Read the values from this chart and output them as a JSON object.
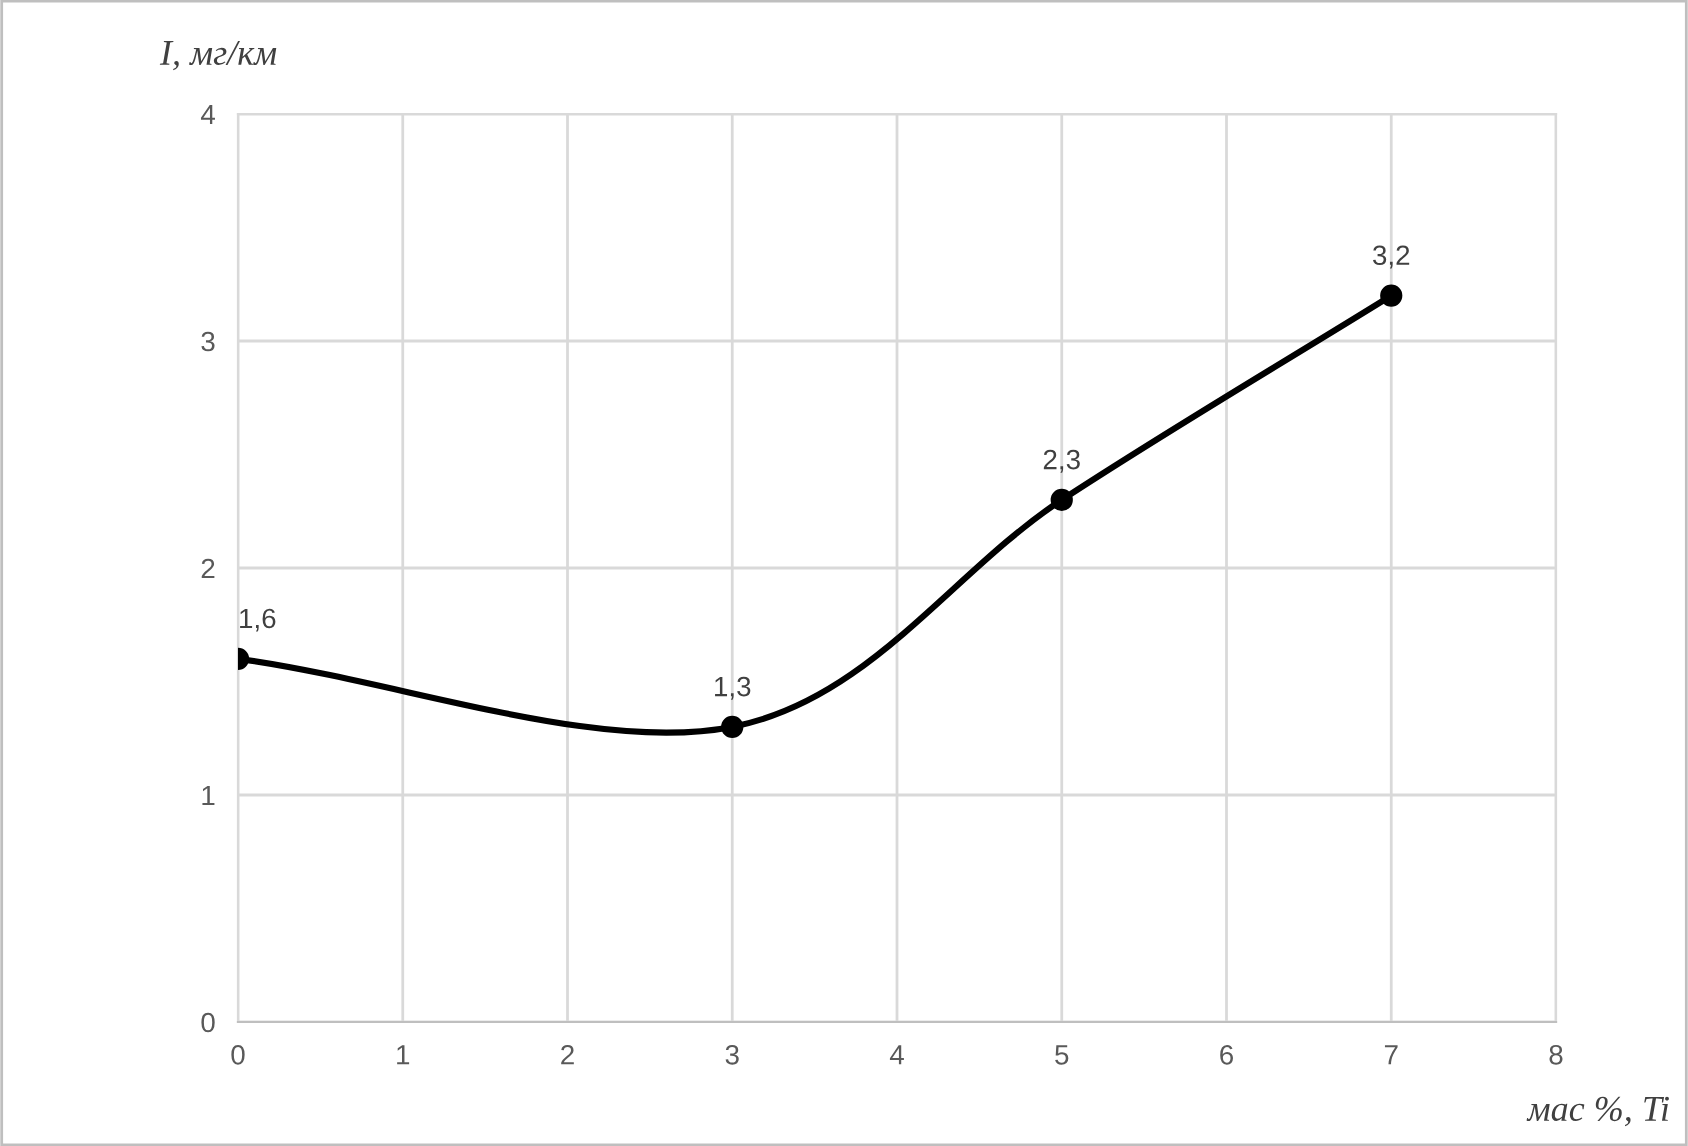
{
  "chart_data": {
    "type": "line",
    "xlabel": "мас %, Ti",
    "ylabel": "I, мг/км",
    "x": [
      0,
      3,
      5,
      7
    ],
    "series": [
      {
        "color": "#000000",
        "values": [
          1.6,
          1.3,
          2.3,
          3.2
        ],
        "value_labels": [
          "1,6",
          "1,3",
          "2,3",
          "3,2"
        ]
      }
    ],
    "xlim": [
      0,
      8
    ],
    "ylim": [
      0,
      4
    ],
    "xticks": [
      0,
      1,
      2,
      3,
      4,
      5,
      6,
      7,
      8
    ],
    "yticks": [
      0,
      1,
      2,
      3,
      4
    ],
    "grid": true,
    "marker": "circle",
    "line_style": "solid"
  }
}
